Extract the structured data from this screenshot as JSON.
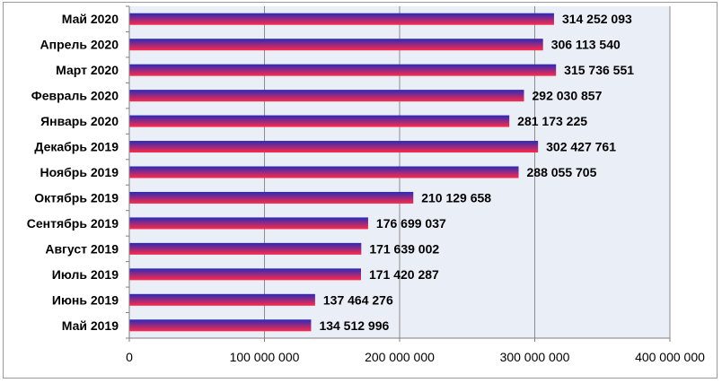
{
  "chart_data": {
    "type": "bar",
    "orientation": "horizontal",
    "categories": [
      "Май 2020",
      "Апрель 2020",
      "Март 2020",
      "Февраль 2020",
      "Январь 2020",
      "Декабрь 2019",
      "Ноябрь 2019",
      "Октябрь 2019",
      "Сентябрь 2019",
      "Август 2019",
      "Июль 2019",
      "Июнь 2019",
      "Май 2019"
    ],
    "values": [
      314252093,
      306113540,
      315736551,
      292030857,
      281173225,
      302427761,
      288055705,
      210129658,
      176699037,
      171639002,
      171420287,
      137464276,
      134512996
    ],
    "data_labels": [
      "314 252 093",
      "306 113 540",
      "315 736 551",
      "292 030 857",
      "281 173 225",
      "302 427 761",
      "288 055 705",
      "210 129 658",
      "176 699 037",
      "171 639 002",
      "171 420 287",
      "137 464 276",
      "134 512 996"
    ],
    "xlim": [
      0,
      400000000
    ],
    "x_ticks": [
      0,
      100000000,
      200000000,
      300000000,
      400000000
    ],
    "x_tick_labels": [
      "0",
      "100 000 000",
      "200 000 000",
      "300 000 000",
      "400 000 000"
    ],
    "title": "",
    "xlabel": "",
    "ylabel": "",
    "grid": "vertical",
    "legend": "none",
    "colors": {
      "bar_top": "#2a2ab8",
      "bar_bottom": "#ff2a4a",
      "plot_background": "#e9eef7",
      "gridline": "#8c8c8c",
      "axis": "#7f7f7f",
      "frame": "#9a9a9a"
    }
  }
}
